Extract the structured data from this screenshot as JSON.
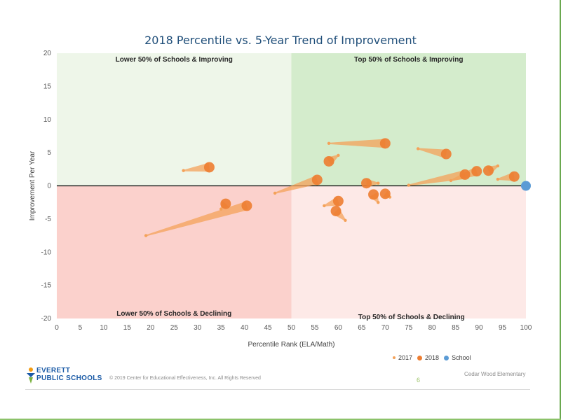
{
  "chart_data": {
    "type": "scatter",
    "title": "2018 Percentile vs. 5-Year Trend of Improvement",
    "xlabel": "Percentile Rank (ELA/Math)",
    "ylabel": "Improvement Per Year",
    "xlim": [
      0,
      100
    ],
    "ylim": [
      -20,
      20
    ],
    "xticks": [
      0,
      5,
      10,
      15,
      20,
      25,
      30,
      35,
      40,
      45,
      50,
      55,
      60,
      65,
      70,
      75,
      80,
      85,
      90,
      95,
      100
    ],
    "yticks": [
      20,
      15,
      10,
      5,
      0,
      -5,
      -10,
      -15,
      -20
    ],
    "quadrants": {
      "top_left": "Lower 50% of Schools & Improving",
      "top_right": "Top 50% of Schools & Improving",
      "bottom_left": "Lower 50% of Schools & Declining",
      "bottom_right": "Top 50% of Schools & Declining"
    },
    "quadrant_colors": {
      "top_left": "#eef6e9",
      "top_right": "#d4eccc",
      "bottom_left": "#fbd1cc",
      "bottom_right": "#fde9e7"
    },
    "legend": [
      "2017",
      "2018",
      "School"
    ],
    "colors": {
      "2017": "#f4a259",
      "2018": "#ed7d31",
      "School": "#5b9bd5"
    },
    "schools": [
      {
        "x2017": 27,
        "y2017": 2.3,
        "x2018": 32.5,
        "y2018": 2.8
      },
      {
        "x2017": 19,
        "y2017": -7.5,
        "x2018": 40.5,
        "y2018": -3.0
      },
      {
        "x2017": 35,
        "y2017": -3.5,
        "x2018": 36,
        "y2018": -2.7
      },
      {
        "x2017": 46.5,
        "y2017": -1.1,
        "x2018": 55.5,
        "y2018": 0.9
      },
      {
        "x2017": 58,
        "y2017": 6.4,
        "x2018": 70,
        "y2018": 6.4
      },
      {
        "x2017": 60,
        "y2017": 4.6,
        "x2018": 58,
        "y2018": 3.7
      },
      {
        "x2017": 57,
        "y2017": -3.0,
        "x2018": 60,
        "y2018": -2.3
      },
      {
        "x2017": 61.5,
        "y2017": -5.2,
        "x2018": 59.5,
        "y2018": -3.8
      },
      {
        "x2017": 68.5,
        "y2017": -2.5,
        "x2018": 67.5,
        "y2018": -1.3
      },
      {
        "x2017": 68.5,
        "y2017": 0.4,
        "x2018": 66,
        "y2018": 0.4
      },
      {
        "x2017": 71,
        "y2017": -1.7,
        "x2018": 70,
        "y2018": -1.2
      },
      {
        "x2017": 77,
        "y2017": 5.6,
        "x2018": 83,
        "y2018": 4.8
      },
      {
        "x2017": 75,
        "y2017": 0.1,
        "x2018": 87,
        "y2018": 1.7
      },
      {
        "x2017": 84,
        "y2017": 0.8,
        "x2018": 89.5,
        "y2018": 2.2
      },
      {
        "x2017": 94,
        "y2017": 3.0,
        "x2018": 92,
        "y2018": 2.3
      },
      {
        "x2017": 94,
        "y2017": 1.0,
        "x2018": 97.5,
        "y2018": 1.4
      }
    ],
    "highlight": {
      "x": 100,
      "y": 0
    }
  },
  "footer": {
    "logo_line1": "EVERETT",
    "logo_line2": "PUBLIC SCHOOLS",
    "copyright": "© 2019 Center for Educational Effectiveness, Inc. All Rights Reserved",
    "page_number": "6",
    "school_name": "Cedar Wood Elementary"
  }
}
